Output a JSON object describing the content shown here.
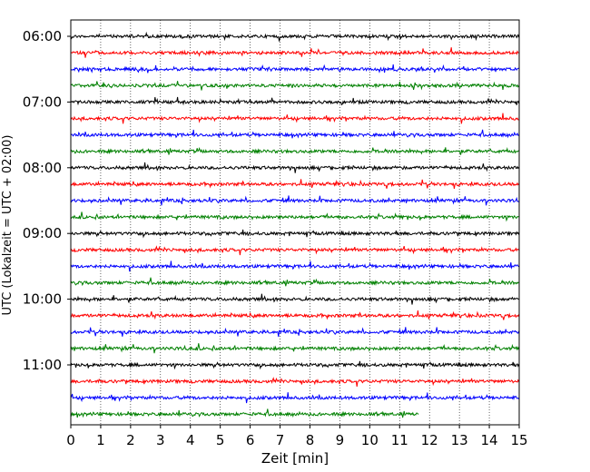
{
  "chart_data": {
    "type": "line",
    "title": "",
    "xlabel": "Zeit  [min]",
    "ylabel": "UTC (Lokalzeit = UTC + 02:00)",
    "xlim": [
      0,
      15
    ],
    "x_ticks": [
      "0",
      "1",
      "2",
      "3",
      "4",
      "5",
      "6",
      "7",
      "8",
      "9",
      "10",
      "11",
      "12",
      "13",
      "14",
      "15"
    ],
    "y_tick_labels": [
      "06:00",
      "07:00",
      "08:00",
      "09:00",
      "10:00",
      "11:00"
    ],
    "grid": "vertical dotted",
    "trace_colors": [
      "#000000",
      "#ff0000",
      "#0000ff",
      "#008000"
    ],
    "traces": [
      {
        "start_utc": "06:00",
        "end_min": 15
      },
      {
        "start_utc": "06:15",
        "end_min": 15
      },
      {
        "start_utc": "06:30",
        "end_min": 15
      },
      {
        "start_utc": "06:45",
        "end_min": 15
      },
      {
        "start_utc": "07:00",
        "end_min": 15
      },
      {
        "start_utc": "07:15",
        "end_min": 15
      },
      {
        "start_utc": "07:30",
        "end_min": 15
      },
      {
        "start_utc": "07:45",
        "end_min": 15
      },
      {
        "start_utc": "08:00",
        "end_min": 15
      },
      {
        "start_utc": "08:15",
        "end_min": 15
      },
      {
        "start_utc": "08:30",
        "end_min": 15
      },
      {
        "start_utc": "08:45",
        "end_min": 15
      },
      {
        "start_utc": "09:00",
        "end_min": 15
      },
      {
        "start_utc": "09:15",
        "end_min": 15
      },
      {
        "start_utc": "09:30",
        "end_min": 15
      },
      {
        "start_utc": "09:45",
        "end_min": 15
      },
      {
        "start_utc": "10:00",
        "end_min": 15
      },
      {
        "start_utc": "10:15",
        "end_min": 15
      },
      {
        "start_utc": "10:30",
        "end_min": 15
      },
      {
        "start_utc": "10:45",
        "end_min": 15
      },
      {
        "start_utc": "11:00",
        "end_min": 15
      },
      {
        "start_utc": "11:15",
        "end_min": 15
      },
      {
        "start_utc": "11:30",
        "end_min": 15
      },
      {
        "start_utc": "11:45",
        "end_min": 11.65
      }
    ]
  }
}
